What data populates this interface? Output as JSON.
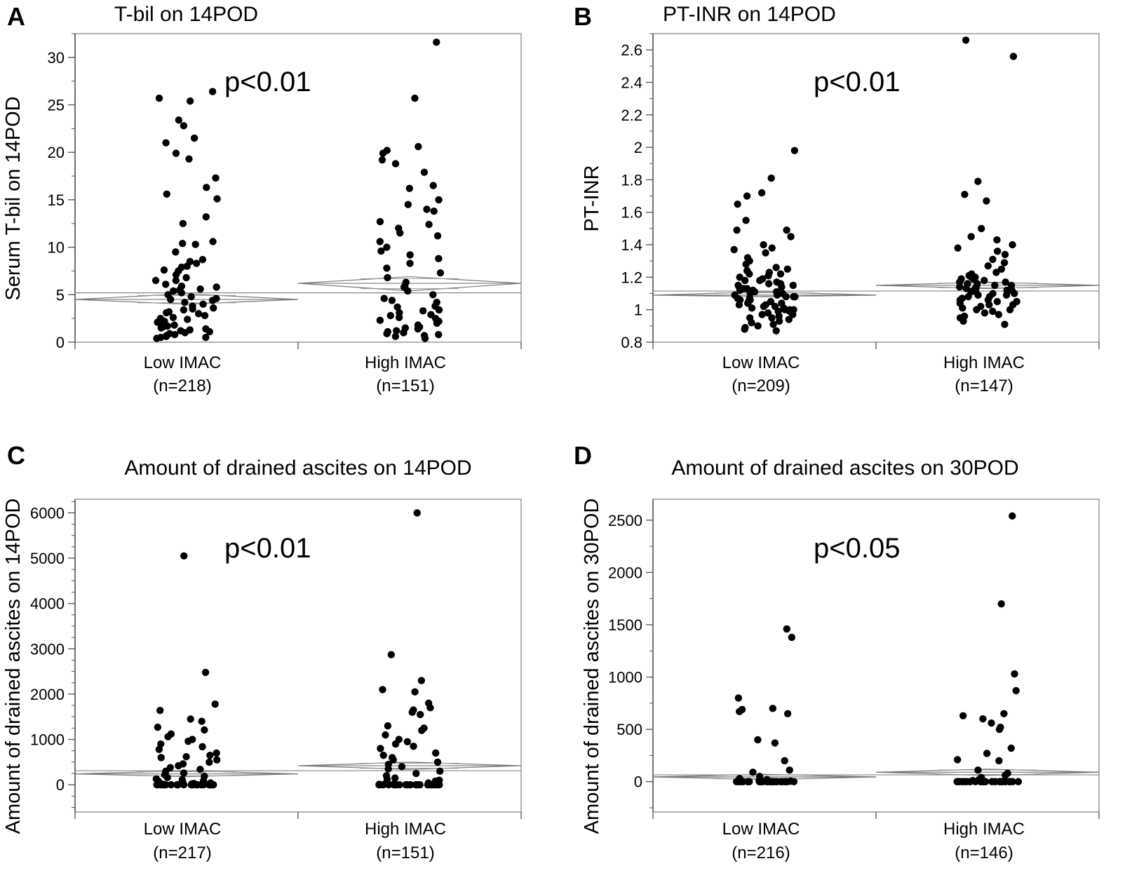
{
  "chart_data": [
    {
      "panel": "A",
      "type": "scatter",
      "title": "T-bil on 14POD",
      "ylabel": "Serum T-bil on 14POD",
      "xlabel": "",
      "pvalue": "p<0.01",
      "ylim": [
        0,
        32.5
      ],
      "yticks": [
        0,
        5,
        10,
        15,
        20,
        25,
        30
      ],
      "minor_step": 2.5,
      "categories": [
        {
          "label": "Low IMAC",
          "n_label": "(n=218)",
          "mean": 4.5,
          "ci": [
            4.0,
            5.1
          ]
        },
        {
          "label": "High IMAC",
          "n_label": "(n=151)",
          "mean": 6.2,
          "ci": [
            5.4,
            6.9
          ]
        }
      ],
      "grand_mean": 5.2,
      "series": [
        {
          "name": "Low IMAC",
          "values": [
            26.4,
            25.7,
            25.4,
            23.4,
            22.8,
            21.5,
            21.0,
            19.9,
            19.3,
            17.3,
            16.3,
            15.6,
            15.1,
            13.2,
            12.5,
            10.6,
            10.4,
            10.3,
            9.5,
            8.7,
            8.5,
            8.3,
            7.9,
            7.6,
            7.1,
            6.8,
            6.5,
            6.1,
            5.9,
            5.8,
            5.6,
            5.4,
            5.2,
            5.0,
            4.8,
            4.6,
            4.4,
            4.2,
            4.0,
            3.8,
            3.6,
            3.4,
            3.2,
            3.0,
            2.8,
            2.6,
            2.4,
            2.2,
            2.0,
            1.8,
            1.6,
            1.4,
            1.3,
            1.2,
            1.1,
            1.0,
            0.9,
            0.8,
            0.7,
            0.6,
            0.5,
            0.5,
            0.4,
            1.5,
            2.5,
            3.5,
            4.5,
            5.5,
            6.5,
            7.5,
            8.0,
            3.1,
            2.1,
            1.7
          ]
        },
        {
          "name": "High IMAC",
          "values": [
            31.6,
            25.7,
            20.6,
            20.2,
            19.9,
            19.2,
            18.8,
            17.9,
            16.5,
            16.2,
            15.0,
            14.5,
            14.0,
            13.8,
            12.7,
            12.4,
            12.0,
            11.5,
            11.2,
            10.6,
            10.0,
            9.6,
            9.2,
            8.8,
            8.3,
            7.8,
            7.3,
            6.8,
            6.3,
            5.8,
            5.4,
            5.0,
            4.6,
            4.2,
            3.8,
            3.4,
            3.1,
            2.8,
            2.5,
            2.2,
            2.0,
            1.8,
            1.6,
            1.4,
            1.2,
            1.0,
            0.9,
            0.8,
            0.6,
            0.4,
            3.3,
            2.9,
            4.4,
            5.9,
            1.5,
            2.6,
            3.7,
            1.1,
            0.7,
            2.3
          ]
        }
      ]
    },
    {
      "panel": "B",
      "type": "scatter",
      "title": "PT-INR on 14POD",
      "ylabel": "PT-INR",
      "xlabel": "",
      "pvalue": "p<0.01",
      "ylim": [
        0.8,
        2.7
      ],
      "yticks": [
        0.8,
        1,
        1.2,
        1.4,
        1.6,
        1.8,
        2,
        2.2,
        2.4,
        2.6
      ],
      "ytick_labels": [
        "0.8",
        "1",
        "1.2",
        "1.4",
        "1.6",
        "1.8",
        "2",
        "2.2",
        "2.4",
        "2.6"
      ],
      "minor_step": 0.1,
      "categories": [
        {
          "label": "Low IMAC",
          "n_label": "(n=209)",
          "mean": 1.09,
          "ci": [
            1.08,
            1.11
          ]
        },
        {
          "label": "High IMAC",
          "n_label": "(n=147)",
          "mean": 1.15,
          "ci": [
            1.13,
            1.17
          ]
        }
      ],
      "grand_mean": 1.115,
      "series": [
        {
          "name": "Low IMAC",
          "values": [
            1.98,
            1.81,
            1.72,
            1.7,
            1.65,
            1.55,
            1.49,
            1.49,
            1.45,
            1.4,
            1.38,
            1.37,
            1.35,
            1.32,
            1.3,
            1.28,
            1.26,
            1.25,
            1.24,
            1.23,
            1.22,
            1.21,
            1.2,
            1.19,
            1.18,
            1.17,
            1.16,
            1.15,
            1.14,
            1.13,
            1.12,
            1.11,
            1.1,
            1.09,
            1.08,
            1.07,
            1.06,
            1.05,
            1.04,
            1.03,
            1.02,
            1.01,
            1.0,
            0.99,
            0.98,
            0.97,
            0.96,
            0.95,
            0.94,
            0.93,
            0.92,
            0.91,
            0.9,
            0.89,
            0.88,
            0.87,
            1.1,
            1.12,
            1.05,
            1.08,
            1.15,
            1.0,
            1.02,
            1.18,
            1.13,
            1.07,
            0.97,
            1.22,
            1.03,
            1.09,
            1.11,
            1.06,
            1.14,
            1.16,
            1.0,
            0.95,
            0.99,
            1.04,
            1.01,
            1.08
          ]
        },
        {
          "name": "High IMAC",
          "values": [
            2.66,
            2.56,
            1.79,
            1.71,
            1.67,
            1.5,
            1.45,
            1.43,
            1.4,
            1.38,
            1.36,
            1.34,
            1.31,
            1.29,
            1.27,
            1.25,
            1.23,
            1.22,
            1.21,
            1.2,
            1.19,
            1.18,
            1.17,
            1.16,
            1.15,
            1.14,
            1.13,
            1.12,
            1.11,
            1.1,
            1.09,
            1.08,
            1.07,
            1.06,
            1.05,
            1.04,
            1.03,
            1.02,
            1.01,
            1.0,
            0.99,
            0.98,
            0.97,
            0.96,
            0.95,
            0.93,
            0.91,
            1.15,
            1.12,
            1.2,
            1.08,
            1.13,
            1.05,
            1.1,
            1.17,
            1.19,
            1.06,
            1.14,
            1.0,
            1.09,
            1.11,
            1.03,
            1.16
          ]
        }
      ]
    },
    {
      "panel": "C",
      "type": "scatter",
      "title": "Amount of drained ascites on 14POD",
      "ylabel": "Amount of drained ascites on 14POD",
      "xlabel": "",
      "pvalue": "p<0.01",
      "ylim": [
        -600,
        6300
      ],
      "yticks": [
        0,
        1000,
        2000,
        3000,
        4000,
        5000,
        6000
      ],
      "minor_step": 250,
      "categories": [
        {
          "label": "Low IMAC",
          "n_label": "(n=217)",
          "mean": 240,
          "ci": [
            180,
            310
          ]
        },
        {
          "label": "High IMAC",
          "n_label": "(n=151)",
          "mean": 420,
          "ci": [
            340,
            500
          ]
        }
      ],
      "grand_mean": 310,
      "series": [
        {
          "name": "Low IMAC",
          "values": [
            5050,
            2480,
            1780,
            1640,
            1450,
            1400,
            1270,
            1210,
            1120,
            1060,
            1000,
            960,
            900,
            840,
            780,
            700,
            650,
            620,
            600,
            550,
            500,
            460,
            420,
            380,
            340,
            300,
            260,
            220,
            190,
            160,
            130,
            110,
            90,
            70,
            50,
            40,
            30,
            20,
            10,
            5,
            0,
            0,
            0,
            0,
            0,
            0,
            0,
            0,
            0,
            0,
            0,
            0,
            0,
            0,
            0,
            0,
            0,
            0,
            0,
            0,
            0,
            0,
            0,
            0,
            0,
            0,
            0,
            0,
            0,
            0
          ]
        },
        {
          "name": "High IMAC",
          "values": [
            6000,
            2870,
            2300,
            2100,
            2050,
            1800,
            1700,
            1650,
            1600,
            1550,
            1300,
            1250,
            1200,
            1100,
            1000,
            950,
            900,
            850,
            800,
            700,
            650,
            600,
            550,
            500,
            450,
            400,
            350,
            300,
            250,
            200,
            150,
            120,
            100,
            80,
            60,
            40,
            20,
            10,
            0,
            0,
            0,
            0,
            0,
            0,
            0,
            0,
            0,
            0,
            0,
            0,
            0,
            0,
            0,
            0,
            0,
            0,
            0,
            0,
            0,
            0,
            0,
            0,
            0,
            0
          ]
        }
      ]
    },
    {
      "panel": "D",
      "type": "scatter",
      "title": "Amount of drained ascites on 30POD",
      "ylabel": "Amount of drained ascites on 30POD",
      "xlabel": "",
      "pvalue": "p<0.05",
      "ylim": [
        -290,
        2700
      ],
      "yticks": [
        0,
        500,
        1000,
        1500,
        2000,
        2500
      ],
      "minor_step": 250,
      "categories": [
        {
          "label": "Low IMAC",
          "n_label": "(n=216)",
          "mean": 45,
          "ci": [
            20,
            70
          ]
        },
        {
          "label": "High IMAC",
          "n_label": "(n=146)",
          "mean": 90,
          "ci": [
            60,
            120
          ]
        }
      ],
      "grand_mean": 65,
      "series": [
        {
          "name": "Low IMAC",
          "values": [
            1460,
            1380,
            800,
            700,
            690,
            670,
            650,
            400,
            370,
            200,
            110,
            90,
            50,
            30,
            20,
            10,
            5,
            0,
            0,
            0,
            0,
            0,
            0,
            0,
            0,
            0,
            0,
            0,
            0,
            0,
            0,
            0,
            0,
            0,
            0,
            0,
            0,
            0,
            0,
            0,
            0,
            0,
            0,
            0,
            0,
            0,
            0,
            0,
            0,
            0
          ]
        },
        {
          "name": "High IMAC",
          "values": [
            2540,
            1700,
            1030,
            870,
            650,
            630,
            600,
            560,
            520,
            500,
            320,
            270,
            210,
            200,
            110,
            80,
            60,
            40,
            20,
            10,
            0,
            0,
            0,
            0,
            0,
            0,
            0,
            0,
            0,
            0,
            0,
            0,
            0,
            0,
            0,
            0,
            0,
            0,
            0,
            0,
            0,
            0,
            0,
            0,
            0,
            0,
            0,
            0
          ]
        }
      ]
    }
  ]
}
